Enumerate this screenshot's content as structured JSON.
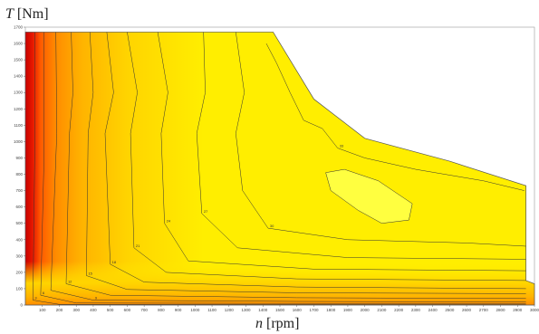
{
  "chart_data": {
    "type": "contour",
    "y_title_symbol": "T",
    "y_title_unit": "[Nm]",
    "x_title_symbol": "n",
    "x_title_unit": "[rpm]",
    "xlim": [
      0,
      3000
    ],
    "ylim": [
      0,
      1700
    ],
    "x_ticks": [
      100,
      200,
      300,
      400,
      500,
      600,
      700,
      800,
      900,
      1000,
      1100,
      1200,
      1300,
      1400,
      1500,
      1600,
      1700,
      1800,
      1900,
      2000,
      2100,
      2200,
      2300,
      2400,
      2500,
      2600,
      2700,
      2800,
      2900,
      3000
    ],
    "y_ticks": [
      0,
      100,
      200,
      300,
      400,
      500,
      600,
      700,
      800,
      900,
      1000,
      1100,
      1200,
      1300,
      1400,
      1500,
      1600,
      1700
    ],
    "grid": false,
    "colorscale": [
      "#ffee00",
      "#ffd400",
      "#ffb300",
      "#ff8c00",
      "#ff5a00",
      "#e81a00",
      "#c80000"
    ],
    "boundary": [
      [
        0,
        0
      ],
      [
        3000,
        0
      ],
      [
        3000,
        130
      ],
      [
        2950,
        150
      ],
      [
        2950,
        730
      ],
      [
        2500,
        880
      ],
      [
        2000,
        1020
      ],
      [
        1700,
        1260
      ],
      [
        1460,
        1670
      ],
      [
        0,
        1670
      ]
    ],
    "optimum_region": [
      [
        1770,
        810
      ],
      [
        1880,
        830
      ],
      [
        2080,
        760
      ],
      [
        2280,
        620
      ],
      [
        2260,
        520
      ],
      [
        2100,
        500
      ],
      [
        1960,
        580
      ],
      [
        1800,
        700
      ]
    ],
    "contours": [
      {
        "level": "33",
        "points": [
          [
            1420,
            1600
          ],
          [
            1480,
            1480
          ],
          [
            1560,
            1300
          ],
          [
            1640,
            1130
          ],
          [
            1750,
            1080
          ],
          [
            1840,
            960
          ],
          [
            2000,
            900
          ],
          [
            2300,
            830
          ],
          [
            2700,
            760
          ],
          [
            2940,
            700
          ]
        ]
      },
      {
        "level": "30",
        "points": [
          [
            1240,
            1670
          ],
          [
            1290,
            1300
          ],
          [
            1240,
            1050
          ],
          [
            1280,
            700
          ],
          [
            1430,
            470
          ],
          [
            1900,
            400
          ],
          [
            2600,
            380
          ],
          [
            2950,
            360
          ]
        ]
      },
      {
        "level": "27",
        "points": [
          [
            1050,
            1670
          ],
          [
            1060,
            1300
          ],
          [
            1010,
            1050
          ],
          [
            1040,
            560
          ],
          [
            1250,
            350
          ],
          [
            1900,
            290
          ],
          [
            2950,
            280
          ]
        ]
      },
      {
        "level": "24",
        "points": [
          [
            780,
            1670
          ],
          [
            840,
            1300
          ],
          [
            800,
            1050
          ],
          [
            820,
            500
          ],
          [
            960,
            270
          ],
          [
            1700,
            220
          ],
          [
            2950,
            210
          ]
        ]
      },
      {
        "level": "21",
        "points": [
          [
            600,
            1670
          ],
          [
            660,
            1300
          ],
          [
            620,
            1050
          ],
          [
            640,
            350
          ],
          [
            830,
            200
          ],
          [
            1600,
            160
          ],
          [
            2950,
            150
          ]
        ]
      },
      {
        "level": "18",
        "points": [
          [
            480,
            1670
          ],
          [
            520,
            1300
          ],
          [
            470,
            1050
          ],
          [
            500,
            250
          ],
          [
            700,
            140
          ],
          [
            1600,
            110
          ],
          [
            2950,
            100
          ]
        ]
      },
      {
        "level": "15",
        "points": [
          [
            380,
            1670
          ],
          [
            400,
            1300
          ],
          [
            370,
            1050
          ],
          [
            360,
            180
          ],
          [
            600,
            95
          ],
          [
            1600,
            75
          ],
          [
            2950,
            70
          ]
        ]
      },
      {
        "level": "12",
        "points": [
          [
            270,
            1670
          ],
          [
            280,
            1300
          ],
          [
            260,
            1050
          ],
          [
            240,
            130
          ],
          [
            500,
            60
          ],
          [
            1600,
            45
          ],
          [
            2950,
            40
          ]
        ]
      },
      {
        "level": "9",
        "points": [
          [
            180,
            1670
          ],
          [
            185,
            1050
          ],
          [
            150,
            90
          ],
          [
            400,
            30
          ],
          [
            1600,
            22
          ],
          [
            2950,
            18
          ]
        ]
      },
      {
        "level": "6",
        "points": [
          [
            110,
            1670
          ],
          [
            110,
            900
          ],
          [
            90,
            60
          ],
          [
            300,
            12
          ],
          [
            2950,
            8
          ]
        ]
      },
      {
        "level": "3",
        "points": [
          [
            55,
            1670
          ],
          [
            55,
            900
          ],
          [
            45,
            30
          ],
          [
            200,
            4
          ],
          [
            2950,
            3
          ]
        ]
      }
    ]
  }
}
